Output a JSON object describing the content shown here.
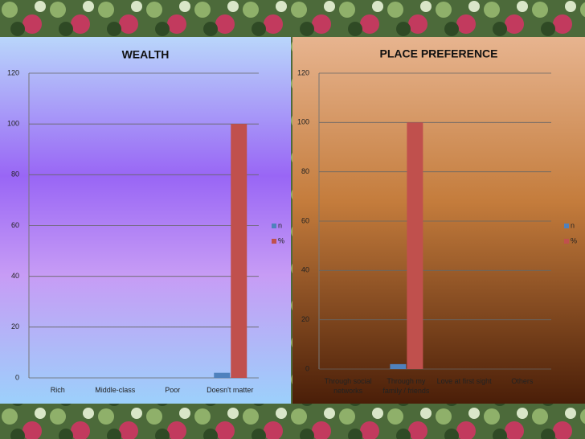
{
  "chart_data": [
    {
      "type": "bar",
      "title": "WEALTH",
      "categories": [
        "Rich",
        "Middle-class",
        "Poor",
        "Doesn't matter"
      ],
      "series": [
        {
          "name": "n",
          "color": "#4f81bd",
          "values": [
            0,
            0,
            0,
            2
          ]
        },
        {
          "name": "%",
          "color": "#c0504d",
          "values": [
            0,
            0,
            0,
            100
          ]
        }
      ],
      "ylim": [
        0,
        120
      ],
      "yticks": [
        0,
        20,
        40,
        60,
        80,
        100,
        120
      ],
      "grid": true,
      "legend": "right"
    },
    {
      "type": "bar",
      "title": "PLACE PREFERENCE",
      "categories": [
        "Through social networks",
        "Through my family / friends",
        "Love at first sight",
        "Others"
      ],
      "series": [
        {
          "name": "n",
          "color": "#4f81bd",
          "values": [
            0,
            2,
            0,
            0
          ]
        },
        {
          "name": "%",
          "color": "#c0504d",
          "values": [
            0,
            100,
            0,
            0
          ]
        }
      ],
      "ylim": [
        0,
        120
      ],
      "yticks": [
        0,
        20,
        40,
        60,
        80,
        100,
        120
      ],
      "grid": true,
      "legend": "right"
    }
  ]
}
